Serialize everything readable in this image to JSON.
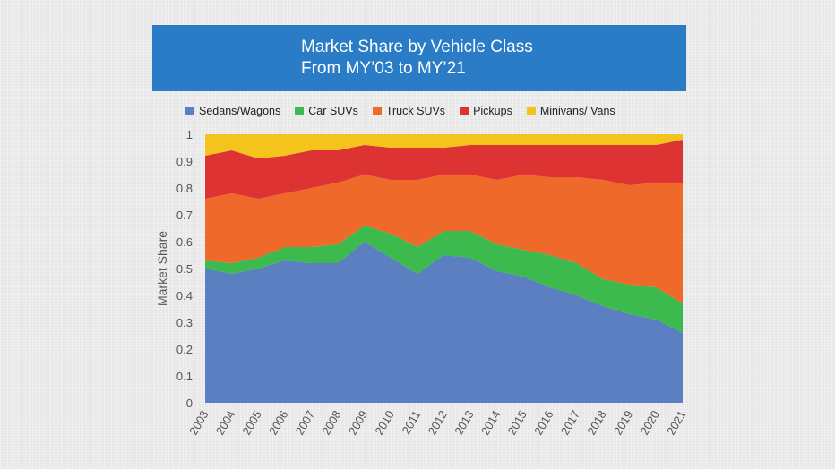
{
  "chart_data": {
    "type": "area",
    "stacked": true,
    "title": "Market Share by Vehicle Class",
    "subtitle": "From MY’03 to MY’21",
    "xlabel": "",
    "ylabel": "Market Share",
    "ylim": [
      0,
      1
    ],
    "grid": false,
    "legend_position": "top",
    "categories": [
      "2003",
      "2004",
      "2005",
      "2006",
      "2007",
      "2008",
      "2009",
      "2010",
      "2011",
      "2012",
      "2013",
      "2014",
      "2015",
      "2016",
      "2017",
      "2018",
      "2019",
      "2020",
      "2021"
    ],
    "yticks": [
      "0",
      "0.1",
      "0.2",
      "0.3",
      "0.4",
      "0.5",
      "0.6",
      "0.7",
      "0.8",
      "0.9",
      "1"
    ],
    "series": [
      {
        "name": "Sedans/Wagons",
        "color": "#5b7fc0",
        "values": [
          0.5,
          0.48,
          0.5,
          0.53,
          0.52,
          0.52,
          0.6,
          0.54,
          0.48,
          0.55,
          0.54,
          0.49,
          0.47,
          0.43,
          0.4,
          0.36,
          0.33,
          0.31,
          0.26
        ]
      },
      {
        "name": "Car SUVs",
        "color": "#3dba4e",
        "values": [
          0.03,
          0.04,
          0.04,
          0.05,
          0.06,
          0.07,
          0.06,
          0.09,
          0.1,
          0.09,
          0.1,
          0.1,
          0.1,
          0.12,
          0.12,
          0.1,
          0.11,
          0.12,
          0.11
        ]
      },
      {
        "name": "Truck SUVs",
        "color": "#ef6a2a",
        "values": [
          0.23,
          0.26,
          0.22,
          0.2,
          0.22,
          0.23,
          0.19,
          0.2,
          0.25,
          0.21,
          0.21,
          0.24,
          0.28,
          0.29,
          0.32,
          0.37,
          0.37,
          0.39,
          0.45
        ]
      },
      {
        "name": "Pickups",
        "color": "#dd3333",
        "values": [
          0.16,
          0.16,
          0.15,
          0.14,
          0.14,
          0.12,
          0.11,
          0.12,
          0.12,
          0.1,
          0.11,
          0.13,
          0.11,
          0.12,
          0.12,
          0.13,
          0.15,
          0.14,
          0.16
        ]
      },
      {
        "name": "Minivans/ Vans",
        "color": "#f4c41c",
        "values": [
          0.08,
          0.06,
          0.09,
          0.08,
          0.06,
          0.06,
          0.04,
          0.05,
          0.05,
          0.05,
          0.04,
          0.04,
          0.04,
          0.04,
          0.04,
          0.04,
          0.04,
          0.04,
          0.02
        ]
      }
    ]
  }
}
